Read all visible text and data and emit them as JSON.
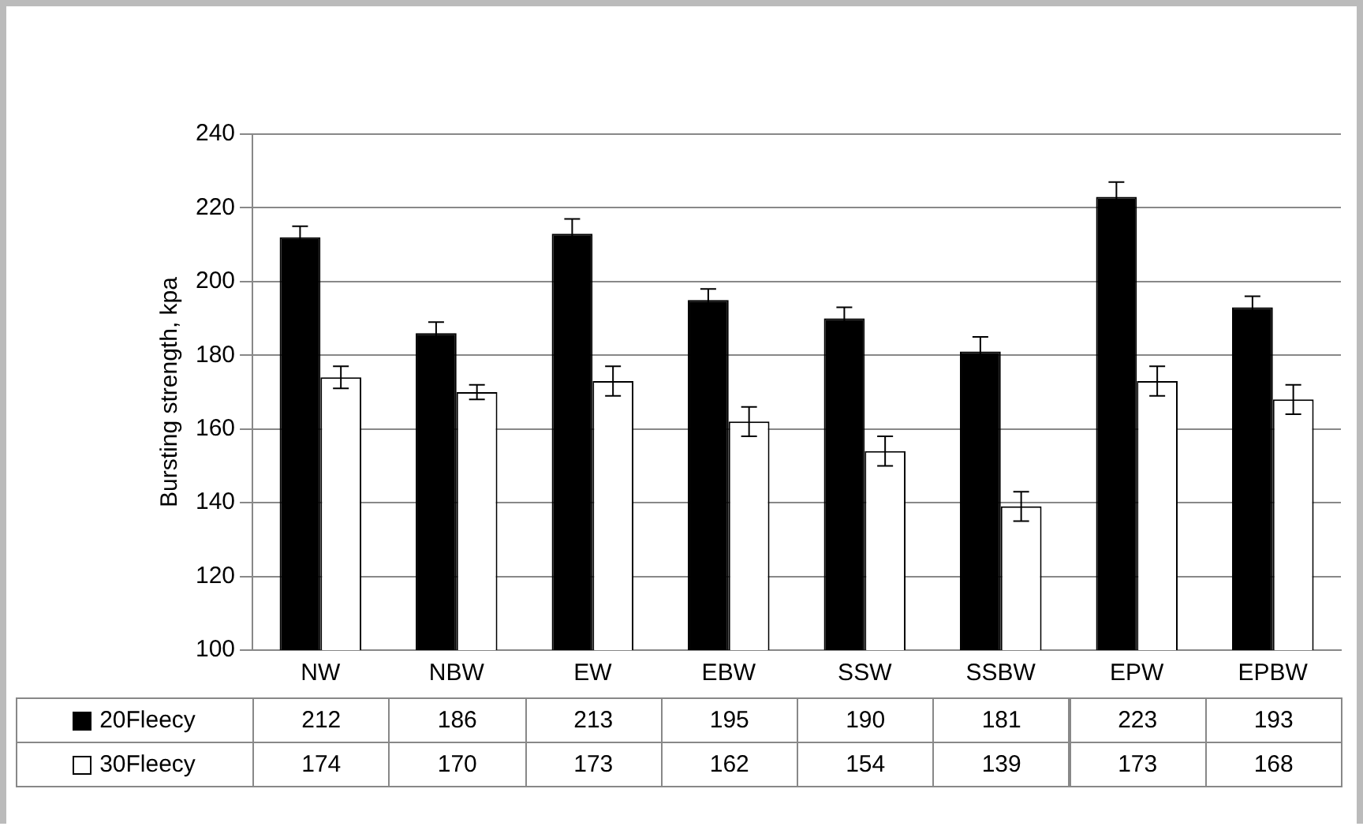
{
  "chart_data": {
    "type": "bar",
    "ylabel": "Bursting strength, kpa",
    "categories": [
      "NW",
      "NBW",
      "EW",
      "EBW",
      "SSW",
      "SSBW",
      "EPW",
      "EPBW"
    ],
    "ylim": [
      100,
      240
    ],
    "yticks": [
      100,
      120,
      140,
      160,
      180,
      200,
      220,
      240
    ],
    "grid": "y",
    "legend": "bottom",
    "data_labels": true,
    "series": [
      {
        "name": "20Fleecy",
        "color": "#000000",
        "values": [
          212,
          186,
          213,
          195,
          190,
          181,
          223,
          193
        ],
        "errors": [
          3,
          3,
          4,
          3,
          3,
          4,
          4,
          3
        ]
      },
      {
        "name": "30Fleecy",
        "color": "#ffffff",
        "values": [
          174,
          170,
          173,
          162,
          154,
          139,
          173,
          168
        ],
        "errors": [
          3,
          2,
          4,
          4,
          4,
          4,
          4,
          4
        ]
      }
    ]
  }
}
